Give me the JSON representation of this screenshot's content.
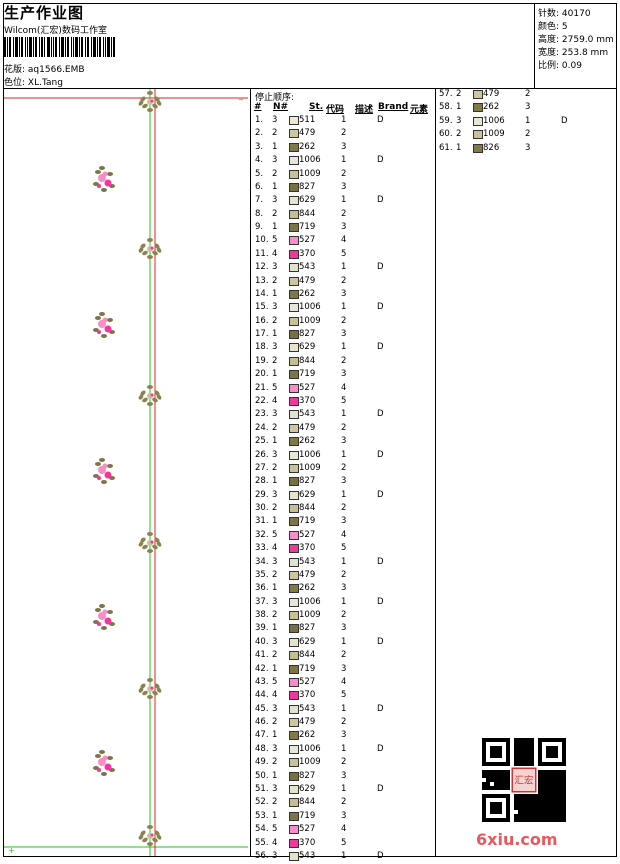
{
  "header": {
    "title": "生产作业图",
    "company": "Wilcom(汇宏)数码工作室",
    "design_label": "花版:",
    "design_value": "aq1566.EMB",
    "colorway_label": "色位:",
    "colorway_value": "XL.Tang"
  },
  "stats": [
    {
      "label": "针数:",
      "value": "40170"
    },
    {
      "label": "颜色:",
      "value": "5"
    },
    {
      "label": "高度:",
      "value": "2759.0 mm"
    },
    {
      "label": "宽度:",
      "value": "253.8 mm"
    },
    {
      "label": "比例:",
      "value": "0.09"
    }
  ],
  "list": {
    "title": "停止顺序:",
    "columns": [
      "#",
      "N#",
      "St.",
      "代码",
      "描述",
      "Brand",
      "元素"
    ]
  },
  "colors": {
    "c511": "#ede9d4",
    "c479": "#cdc6a0",
    "c262": "#7f7947",
    "c1006": "#e7e6d8",
    "c1009": "#c8c199",
    "c827": "#777040",
    "c629": "#e6e3cf",
    "c844": "#c4be93",
    "c719": "#7d7546",
    "c527": "#f78ec7",
    "c370": "#f1389a",
    "c543": "#e4e1cf",
    "c826": "#807a48"
  },
  "stops": [
    {
      "n": "1.",
      "nn": "3",
      "code": "511",
      "st": "1",
      "desc": "D",
      "color": "#ede9d4"
    },
    {
      "n": "2.",
      "nn": "2",
      "code": "479",
      "st": "2",
      "desc": "",
      "color": "#cdc6a0"
    },
    {
      "n": "3.",
      "nn": "1",
      "code": "262",
      "st": "3",
      "desc": "",
      "color": "#7f7947"
    },
    {
      "n": "4.",
      "nn": "3",
      "code": "1006",
      "st": "1",
      "desc": "D",
      "color": "#e7e6d8"
    },
    {
      "n": "5.",
      "nn": "2",
      "code": "1009",
      "st": "2",
      "desc": "",
      "color": "#c8c199"
    },
    {
      "n": "6.",
      "nn": "1",
      "code": "827",
      "st": "3",
      "desc": "",
      "color": "#777040"
    },
    {
      "n": "7.",
      "nn": "3",
      "code": "629",
      "st": "1",
      "desc": "D",
      "color": "#e6e3cf"
    },
    {
      "n": "8.",
      "nn": "2",
      "code": "844",
      "st": "2",
      "desc": "",
      "color": "#c4be93"
    },
    {
      "n": "9.",
      "nn": "1",
      "code": "719",
      "st": "3",
      "desc": "",
      "color": "#7d7546"
    },
    {
      "n": "10.",
      "nn": "5",
      "code": "527",
      "st": "4",
      "desc": "",
      "color": "#f78ec7"
    },
    {
      "n": "11.",
      "nn": "4",
      "code": "370",
      "st": "5",
      "desc": "",
      "color": "#f1389a"
    },
    {
      "n": "12.",
      "nn": "3",
      "code": "543",
      "st": "1",
      "desc": "D",
      "color": "#e4e1cf"
    },
    {
      "n": "13.",
      "nn": "2",
      "code": "479",
      "st": "2",
      "desc": "",
      "color": "#cdc6a0"
    },
    {
      "n": "14.",
      "nn": "1",
      "code": "262",
      "st": "3",
      "desc": "",
      "color": "#7f7947"
    },
    {
      "n": "15.",
      "nn": "3",
      "code": "1006",
      "st": "1",
      "desc": "D",
      "color": "#e7e6d8"
    },
    {
      "n": "16.",
      "nn": "2",
      "code": "1009",
      "st": "2",
      "desc": "",
      "color": "#c8c199"
    },
    {
      "n": "17.",
      "nn": "1",
      "code": "827",
      "st": "3",
      "desc": "",
      "color": "#777040"
    },
    {
      "n": "18.",
      "nn": "3",
      "code": "629",
      "st": "1",
      "desc": "D",
      "color": "#e6e3cf"
    },
    {
      "n": "19.",
      "nn": "2",
      "code": "844",
      "st": "2",
      "desc": "",
      "color": "#c4be93"
    },
    {
      "n": "20.",
      "nn": "1",
      "code": "719",
      "st": "3",
      "desc": "",
      "color": "#7d7546"
    },
    {
      "n": "21.",
      "nn": "5",
      "code": "527",
      "st": "4",
      "desc": "",
      "color": "#f78ec7"
    },
    {
      "n": "22.",
      "nn": "4",
      "code": "370",
      "st": "5",
      "desc": "",
      "color": "#f1389a"
    },
    {
      "n": "23.",
      "nn": "3",
      "code": "543",
      "st": "1",
      "desc": "D",
      "color": "#e4e1cf"
    },
    {
      "n": "24.",
      "nn": "2",
      "code": "479",
      "st": "2",
      "desc": "",
      "color": "#cdc6a0"
    },
    {
      "n": "25.",
      "nn": "1",
      "code": "262",
      "st": "3",
      "desc": "",
      "color": "#7f7947"
    },
    {
      "n": "26.",
      "nn": "3",
      "code": "1006",
      "st": "1",
      "desc": "D",
      "color": "#e7e6d8"
    },
    {
      "n": "27.",
      "nn": "2",
      "code": "1009",
      "st": "2",
      "desc": "",
      "color": "#c8c199"
    },
    {
      "n": "28.",
      "nn": "1",
      "code": "827",
      "st": "3",
      "desc": "",
      "color": "#777040"
    },
    {
      "n": "29.",
      "nn": "3",
      "code": "629",
      "st": "1",
      "desc": "D",
      "color": "#e6e3cf"
    },
    {
      "n": "30.",
      "nn": "2",
      "code": "844",
      "st": "2",
      "desc": "",
      "color": "#c4be93"
    },
    {
      "n": "31.",
      "nn": "1",
      "code": "719",
      "st": "3",
      "desc": "",
      "color": "#7d7546"
    },
    {
      "n": "32.",
      "nn": "5",
      "code": "527",
      "st": "4",
      "desc": "",
      "color": "#f78ec7"
    },
    {
      "n": "33.",
      "nn": "4",
      "code": "370",
      "st": "5",
      "desc": "",
      "color": "#f1389a"
    },
    {
      "n": "34.",
      "nn": "3",
      "code": "543",
      "st": "1",
      "desc": "D",
      "color": "#e4e1cf"
    },
    {
      "n": "35.",
      "nn": "2",
      "code": "479",
      "st": "2",
      "desc": "",
      "color": "#cdc6a0"
    },
    {
      "n": "36.",
      "nn": "1",
      "code": "262",
      "st": "3",
      "desc": "",
      "color": "#7f7947"
    },
    {
      "n": "37.",
      "nn": "3",
      "code": "1006",
      "st": "1",
      "desc": "D",
      "color": "#e7e6d8"
    },
    {
      "n": "38.",
      "nn": "2",
      "code": "1009",
      "st": "2",
      "desc": "",
      "color": "#c8c199"
    },
    {
      "n": "39.",
      "nn": "1",
      "code": "827",
      "st": "3",
      "desc": "",
      "color": "#777040"
    },
    {
      "n": "40.",
      "nn": "3",
      "code": "629",
      "st": "1",
      "desc": "D",
      "color": "#e6e3cf"
    },
    {
      "n": "41.",
      "nn": "2",
      "code": "844",
      "st": "2",
      "desc": "",
      "color": "#c4be93"
    },
    {
      "n": "42.",
      "nn": "1",
      "code": "719",
      "st": "3",
      "desc": "",
      "color": "#7d7546"
    },
    {
      "n": "43.",
      "nn": "5",
      "code": "527",
      "st": "4",
      "desc": "",
      "color": "#f78ec7"
    },
    {
      "n": "44.",
      "nn": "4",
      "code": "370",
      "st": "5",
      "desc": "",
      "color": "#f1389a"
    },
    {
      "n": "45.",
      "nn": "3",
      "code": "543",
      "st": "1",
      "desc": "D",
      "color": "#e4e1cf"
    },
    {
      "n": "46.",
      "nn": "2",
      "code": "479",
      "st": "2",
      "desc": "",
      "color": "#cdc6a0"
    },
    {
      "n": "47.",
      "nn": "1",
      "code": "262",
      "st": "3",
      "desc": "",
      "color": "#7f7947"
    },
    {
      "n": "48.",
      "nn": "3",
      "code": "1006",
      "st": "1",
      "desc": "D",
      "color": "#e7e6d8"
    },
    {
      "n": "49.",
      "nn": "2",
      "code": "1009",
      "st": "2",
      "desc": "",
      "color": "#c8c199"
    },
    {
      "n": "50.",
      "nn": "1",
      "code": "827",
      "st": "3",
      "desc": "",
      "color": "#777040"
    },
    {
      "n": "51.",
      "nn": "3",
      "code": "629",
      "st": "1",
      "desc": "D",
      "color": "#e6e3cf"
    },
    {
      "n": "52.",
      "nn": "2",
      "code": "844",
      "st": "2",
      "desc": "",
      "color": "#c4be93"
    },
    {
      "n": "53.",
      "nn": "1",
      "code": "719",
      "st": "3",
      "desc": "",
      "color": "#7d7546"
    },
    {
      "n": "54.",
      "nn": "5",
      "code": "527",
      "st": "4",
      "desc": "",
      "color": "#f78ec7"
    },
    {
      "n": "55.",
      "nn": "4",
      "code": "370",
      "st": "5",
      "desc": "",
      "color": "#f1389a"
    },
    {
      "n": "56.",
      "nn": "3",
      "code": "543",
      "st": "1",
      "desc": "D",
      "color": "#e4e1cf"
    }
  ],
  "stops2": [
    {
      "n": "57.",
      "nn": "2",
      "code": "479",
      "st": "2",
      "desc": "",
      "color": "#cdc6a0"
    },
    {
      "n": "58.",
      "nn": "1",
      "code": "262",
      "st": "3",
      "desc": "",
      "color": "#7f7947"
    },
    {
      "n": "59.",
      "nn": "3",
      "code": "1006",
      "st": "1",
      "desc": "D",
      "color": "#e7e6d8"
    },
    {
      "n": "60.",
      "nn": "2",
      "code": "1009",
      "st": "2",
      "desc": "",
      "color": "#c8c199"
    },
    {
      "n": "61.",
      "nn": "1",
      "code": "826",
      "st": "3",
      "desc": "",
      "color": "#807a48"
    }
  ],
  "watermark": "6xiu.com",
  "seal_text": "汇宏"
}
